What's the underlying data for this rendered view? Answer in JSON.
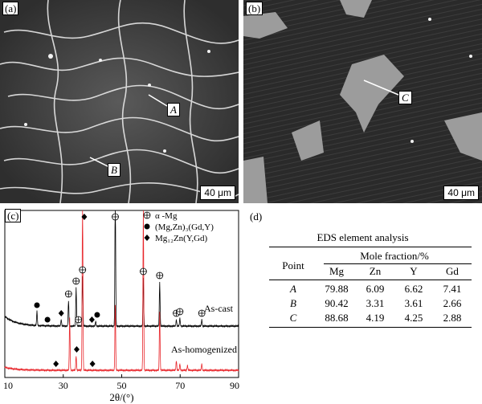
{
  "panels": {
    "a": {
      "tag": "(a)",
      "scale": "40 μm",
      "points": [
        "A",
        "B"
      ]
    },
    "b": {
      "tag": "(b)",
      "scale": "40 μm",
      "points": [
        "C"
      ]
    },
    "c": {
      "tag": "(c)"
    },
    "d": {
      "tag": "(d)"
    }
  },
  "chart_data": {
    "type": "line",
    "title": "",
    "xlabel": "2θ/(°)",
    "ylabel": "",
    "xlim": [
      10,
      90
    ],
    "x_ticks": [
      10,
      30,
      50,
      70,
      90
    ],
    "legend": [
      {
        "marker": "⊕",
        "label": "α -Mg"
      },
      {
        "marker": "●",
        "label": "(Mg,Zn)₃(Gd,Y)"
      },
      {
        "marker": "◆",
        "label": "Mg₁₂Zn(Y,Gd)"
      }
    ],
    "series": [
      {
        "name": "As-cast",
        "color": "#000000",
        "peaks": [
          [
            21.0,
            18
          ],
          [
            29.3,
            8
          ],
          [
            31.8,
            32
          ],
          [
            34.4,
            48
          ],
          [
            36.6,
            62
          ],
          [
            41.1,
            6
          ],
          [
            47.8,
            168
          ],
          [
            57.4,
            60
          ],
          [
            63.0,
            55
          ],
          [
            68.7,
            8
          ],
          [
            69.9,
            10
          ],
          [
            77.4,
            8
          ]
        ]
      },
      {
        "name": "As-homogenized",
        "color": "#e8262b",
        "peaks": [
          [
            32.2,
            66
          ],
          [
            34.4,
            18
          ],
          [
            36.6,
            220
          ],
          [
            47.8,
            82
          ],
          [
            57.4,
            205
          ],
          [
            63.0,
            72
          ],
          [
            68.7,
            12
          ],
          [
            69.9,
            8
          ],
          [
            72.5,
            6
          ],
          [
            77.4,
            8
          ]
        ]
      }
    ],
    "markers_cast": [
      {
        "x": 21.0,
        "sym": "●"
      },
      {
        "x": 24.6,
        "sym": "●"
      },
      {
        "x": 29.3,
        "sym": "◆"
      },
      {
        "x": 31.8,
        "sym": "⊕"
      },
      {
        "x": 34.4,
        "sym": "⊕"
      },
      {
        "x": 35.2,
        "sym": "⊕"
      },
      {
        "x": 36.6,
        "sym": "⊕"
      },
      {
        "x": 39.8,
        "sym": "◆"
      },
      {
        "x": 41.6,
        "sym": "●"
      },
      {
        "x": 47.8,
        "sym": "⊕"
      },
      {
        "x": 57.4,
        "sym": "⊕"
      },
      {
        "x": 63.0,
        "sym": "⊕"
      },
      {
        "x": 68.7,
        "sym": "⊕"
      },
      {
        "x": 69.9,
        "sym": "⊕"
      },
      {
        "x": 77.4,
        "sym": "⊕"
      }
    ],
    "markers_homog": [
      {
        "x": 27.5,
        "sym": "◆"
      },
      {
        "x": 34.6,
        "sym": "◆"
      },
      {
        "x": 37.2,
        "sym": "◆"
      },
      {
        "x": 40.0,
        "sym": "◆"
      }
    ]
  },
  "eds": {
    "title": "EDS element analysis",
    "col_point": "Point",
    "group_header": "Mole fraction/%",
    "elements": [
      "Mg",
      "Zn",
      "Y",
      "Gd"
    ],
    "rows": [
      {
        "point": "A",
        "values": [
          "79.88",
          "6.09",
          "6.62",
          "7.41"
        ]
      },
      {
        "point": "B",
        "values": [
          "90.42",
          "3.31",
          "3.61",
          "2.66"
        ]
      },
      {
        "point": "C",
        "values": [
          "88.68",
          "4.19",
          "4.25",
          "2.88"
        ]
      }
    ]
  }
}
